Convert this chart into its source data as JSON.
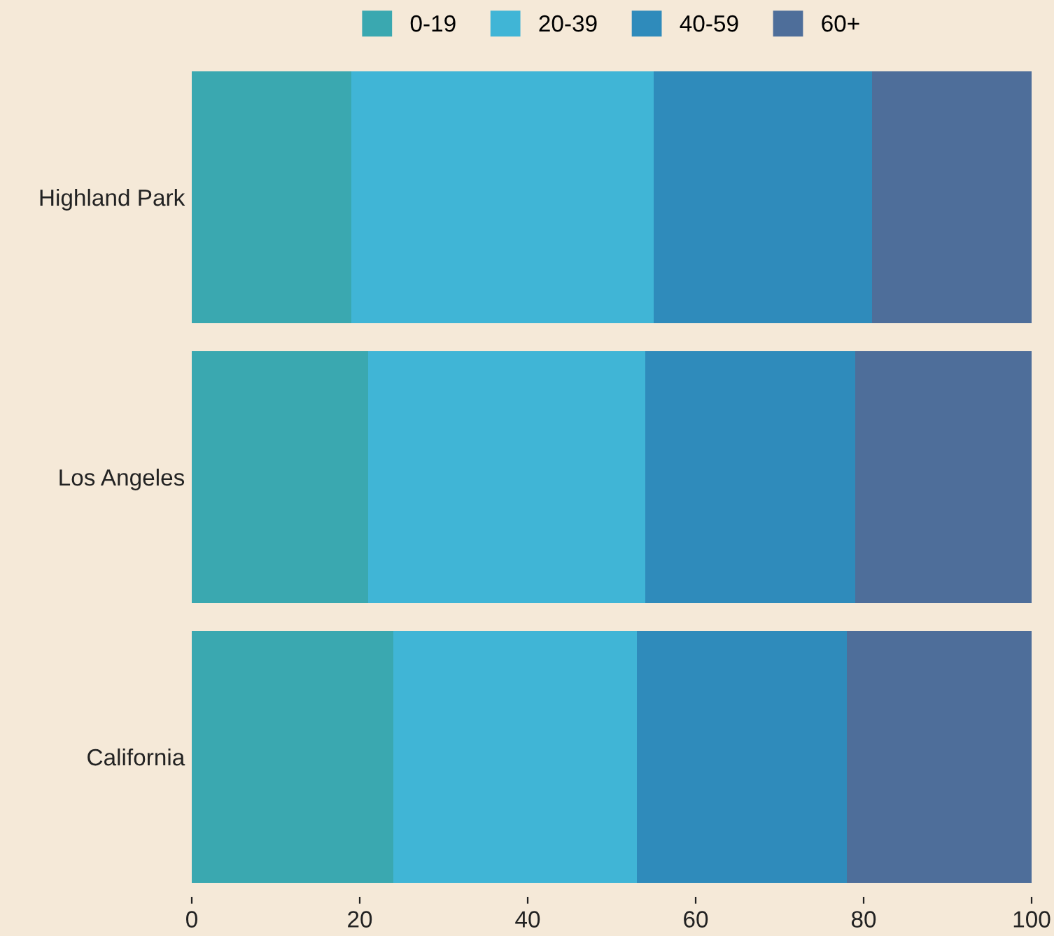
{
  "chart_data": {
    "type": "bar",
    "orientation": "horizontal",
    "stacked": true,
    "categories": [
      "Highland Park",
      "Los Angeles",
      "California"
    ],
    "series": [
      {
        "name": "0-19",
        "color": "#3aa8b0",
        "values": [
          19,
          21,
          24
        ]
      },
      {
        "name": "20-39",
        "color": "#40b5d6",
        "values": [
          36,
          33,
          29
        ]
      },
      {
        "name": "40-59",
        "color": "#2f8bbb",
        "values": [
          26,
          25,
          25
        ]
      },
      {
        "name": "60+",
        "color": "#4e6e9a",
        "values": [
          19,
          21,
          22
        ]
      }
    ],
    "xlim": [
      0,
      100
    ],
    "xticks": [
      0,
      20,
      40,
      60,
      80,
      100
    ],
    "grid": false,
    "legend": "top"
  }
}
